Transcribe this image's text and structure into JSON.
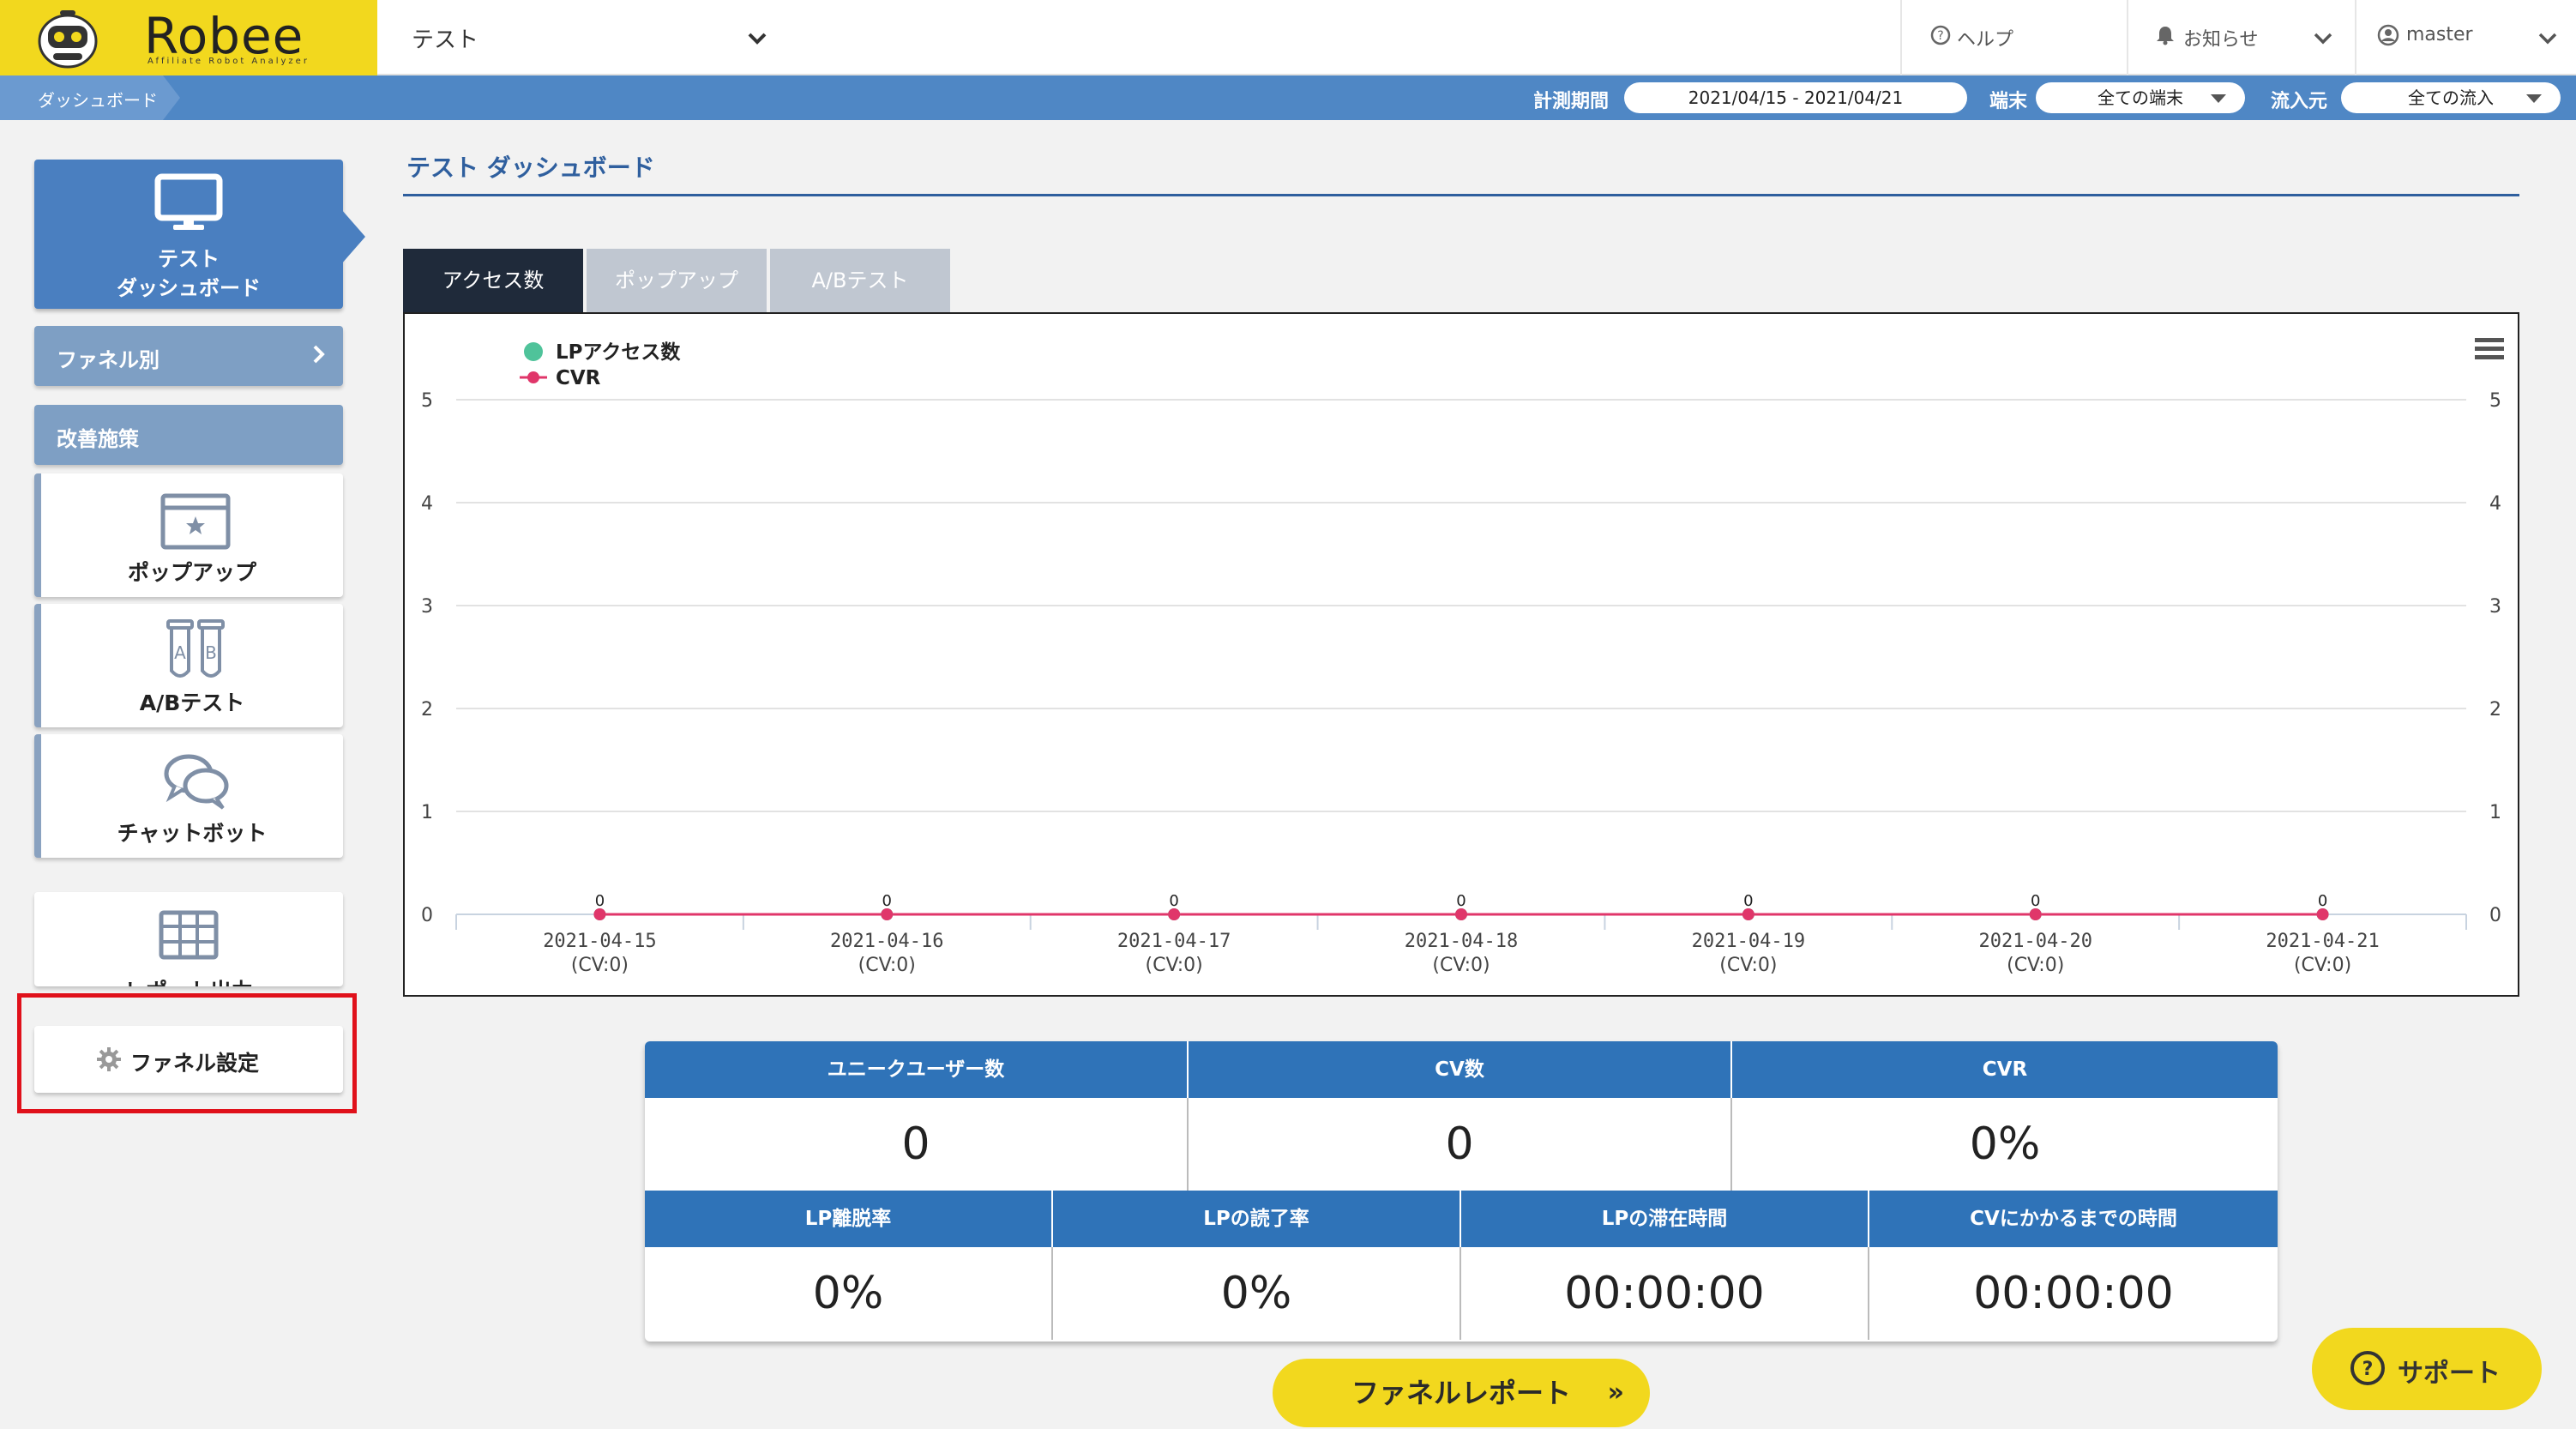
{
  "app": {
    "logo_text": "Robee",
    "logo_subtitle": "Affiliate Robot Analyzer"
  },
  "header": {
    "project": "テスト",
    "help": "ヘルプ",
    "notice": "お知らせ",
    "user": "master"
  },
  "subbar": {
    "breadcrumb": "ダッシュボード",
    "period_label": "計測期間",
    "period_value": "2021/04/15 - 2021/04/21",
    "device_label": "端末",
    "device_value": "全ての端末",
    "source_label": "流入元",
    "source_value": "全ての流入"
  },
  "sidebar": {
    "dashboard_line1": "テスト",
    "dashboard_line2": "ダッシュボード",
    "funnel_by": "ファネル別",
    "improvement": "改善施策",
    "popup": "ポップアップ",
    "abtest": "A/Bテスト",
    "chatbot": "チャットボット",
    "report": "レポート出力",
    "funnel_settings": "ファネル設定"
  },
  "main": {
    "title": "テスト ダッシュボード",
    "tabs": [
      "アクセス数",
      "ポップアップ",
      "A/Bテスト"
    ]
  },
  "chart_data": {
    "type": "line",
    "categories": [
      "2021-04-15",
      "2021-04-16",
      "2021-04-17",
      "2021-04-18",
      "2021-04-19",
      "2021-04-20",
      "2021-04-21"
    ],
    "category_sublabels": [
      "(CV:0)",
      "(CV:0)",
      "(CV:0)",
      "(CV:0)",
      "(CV:0)",
      "(CV:0)",
      "(CV:0)"
    ],
    "series": [
      {
        "name": "LPアクセス数",
        "values": [
          0,
          0,
          0,
          0,
          0,
          0,
          0
        ],
        "color": "#4fc39a"
      },
      {
        "name": "CVR",
        "values": [
          0,
          0,
          0,
          0,
          0,
          0,
          0
        ],
        "color": "#e0366a"
      }
    ],
    "data_labels": [
      "0",
      "0",
      "0",
      "0",
      "0",
      "0",
      "0"
    ],
    "ylim": [
      0,
      5
    ],
    "y_ticks": [
      0,
      1,
      2,
      3,
      4,
      5
    ],
    "y2_ticks": [
      0,
      1,
      2,
      3,
      4,
      5
    ],
    "grid": true,
    "legend_position": "top-left"
  },
  "stats": {
    "row1": [
      {
        "label": "ユニークユーザー数",
        "value": "0"
      },
      {
        "label": "CV数",
        "value": "0"
      },
      {
        "label": "CVR",
        "value": "0%"
      }
    ],
    "row2": [
      {
        "label": "LP離脱率",
        "value": "0%"
      },
      {
        "label": "LPの読了率",
        "value": "0%"
      },
      {
        "label": "LPの滞在時間",
        "value": "00:00:00"
      },
      {
        "label": "CVにかかるまでの時間",
        "value": "00:00:00"
      }
    ]
  },
  "buttons": {
    "funnel_report": "ファネルレポート",
    "funnel_report_arrow": "»",
    "support": "サポート"
  },
  "colors": {
    "brand_yellow": "#f2d81e",
    "header_blue": "#4f87c5",
    "stat_blue": "#2f73b8",
    "highlight_red": "#e0111b"
  }
}
